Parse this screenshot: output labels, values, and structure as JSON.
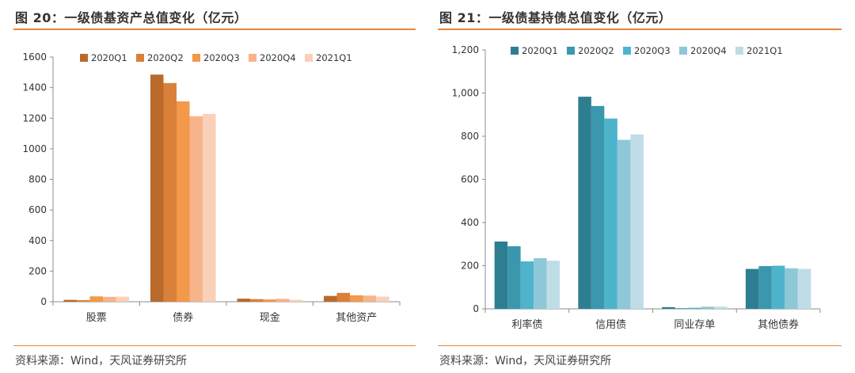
{
  "charts": [
    {
      "title": "图 20：一级债基资产总值变化（亿元）",
      "source": "资料来源：Wind，天风证券研究所",
      "chart_data": {
        "type": "bar",
        "categories": [
          "股票",
          "债券",
          "现金",
          "其他资产"
        ],
        "series": [
          {
            "name": "2020Q1",
            "color": "#B96A2B",
            "values": [
              12,
              1485,
              20,
              38
            ]
          },
          {
            "name": "2020Q2",
            "color": "#D9803A",
            "values": [
              10,
              1430,
              17,
              58
            ]
          },
          {
            "name": "2020Q3",
            "color": "#F2994A",
            "values": [
              35,
              1310,
              15,
              42
            ]
          },
          {
            "name": "2020Q4",
            "color": "#F7B48A",
            "values": [
              32,
              1213,
              19,
              40
            ]
          },
          {
            "name": "2021Q1",
            "color": "#FAD0B8",
            "values": [
              33,
              1228,
              13,
              33
            ]
          }
        ],
        "ylim": [
          0,
          1600
        ],
        "yticks": [
          0,
          200,
          400,
          600,
          800,
          1000,
          1200,
          1400,
          1600
        ],
        "ytick_labels": [
          "0",
          "200",
          "400",
          "600",
          "800",
          "1000",
          "1200",
          "1400",
          "1600"
        ],
        "grid": false,
        "legend": "top"
      }
    },
    {
      "title": "图 21：一级债基持债总值变化（亿元）",
      "source": "资料来源：Wind，天风证券研究所",
      "chart_data": {
        "type": "bar",
        "categories": [
          "利率债",
          "信用债",
          "同业存单",
          "其他债券"
        ],
        "series": [
          {
            "name": "2020Q1",
            "color": "#2E7E92",
            "values": [
              312,
              983,
              8,
              185
            ]
          },
          {
            "name": "2020Q2",
            "color": "#3A97AE",
            "values": [
              290,
              940,
              3,
              198
            ]
          },
          {
            "name": "2020Q3",
            "color": "#4DB4CC",
            "values": [
              220,
              882,
              5,
              200
            ]
          },
          {
            "name": "2020Q4",
            "color": "#8EC8D8",
            "values": [
              235,
              783,
              10,
              188
            ]
          },
          {
            "name": "2021Q1",
            "color": "#BFDDE6",
            "values": [
              223,
              808,
              10,
              185
            ]
          }
        ],
        "ylim": [
          0,
          1200
        ],
        "yticks": [
          0,
          200,
          400,
          600,
          800,
          1000,
          1200
        ],
        "ytick_labels": [
          "0",
          "200",
          "400",
          "600",
          "800",
          "1,000",
          "1,200"
        ],
        "grid": false,
        "legend": "top"
      }
    }
  ]
}
